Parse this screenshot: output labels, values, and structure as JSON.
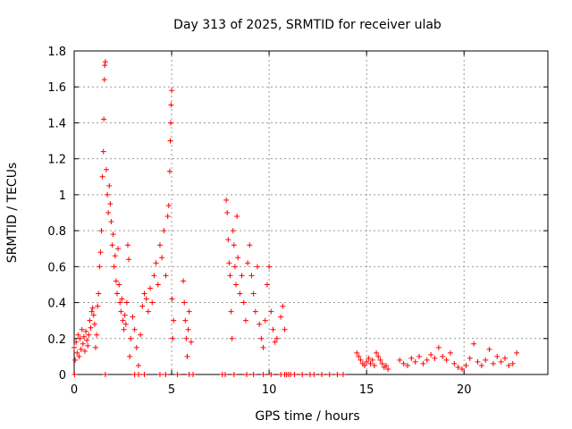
{
  "chart_data": {
    "type": "scatter",
    "title": "Day 313 of 2025, SRMTID for receiver ulab",
    "xlabel": "GPS time / hours",
    "ylabel": "SRMTID / TECUs",
    "xlim": [
      0,
      24.3
    ],
    "ylim": [
      0,
      1.8
    ],
    "x_ticks": [
      0,
      5,
      10,
      15,
      20
    ],
    "y_ticks": [
      0,
      0.2,
      0.4,
      0.6,
      0.8,
      1,
      1.2,
      1.4,
      1.6,
      1.8
    ],
    "x_tick_labels": [
      "0",
      "5",
      "10",
      "15",
      "20"
    ],
    "y_tick_labels": [
      "0",
      "0.2",
      "0.4",
      "0.6",
      "0.8",
      "1",
      "1.2",
      "1.4",
      "1.6",
      "1.8"
    ],
    "grid": true,
    "marker": "+",
    "color": "#ff0000",
    "series": [
      {
        "name": "SRMTID",
        "points": [
          [
            0.0,
            0.15
          ],
          [
            0.05,
            0.08
          ],
          [
            0.1,
            0.18
          ],
          [
            0.15,
            0.12
          ],
          [
            0.2,
            0.22
          ],
          [
            0.25,
            0.1
          ],
          [
            0.3,
            0.2
          ],
          [
            0.35,
            0.14
          ],
          [
            0.4,
            0.25
          ],
          [
            0.45,
            0.17
          ],
          [
            0.5,
            0.21
          ],
          [
            0.55,
            0.13
          ],
          [
            0.6,
            0.24
          ],
          [
            0.65,
            0.19
          ],
          [
            0.7,
            0.16
          ],
          [
            0.75,
            0.22
          ],
          [
            0.8,
            0.3
          ],
          [
            0.85,
            0.26
          ],
          [
            0.9,
            0.35
          ],
          [
            0.95,
            0.37
          ],
          [
            1.0,
            0.33
          ],
          [
            1.05,
            0.28
          ],
          [
            1.1,
            0.15
          ],
          [
            1.15,
            0.22
          ],
          [
            1.2,
            0.38
          ],
          [
            1.25,
            0.45
          ],
          [
            1.3,
            0.6
          ],
          [
            1.35,
            0.68
          ],
          [
            1.4,
            0.8
          ],
          [
            1.45,
            1.1
          ],
          [
            1.5,
            1.24
          ],
          [
            1.52,
            1.42
          ],
          [
            1.55,
            1.64
          ],
          [
            1.57,
            1.72
          ],
          [
            1.6,
            1.74
          ],
          [
            1.65,
            1.14
          ],
          [
            1.7,
            1.0
          ],
          [
            1.75,
            0.9
          ],
          [
            1.8,
            1.05
          ],
          [
            1.85,
            0.95
          ],
          [
            1.9,
            0.85
          ],
          [
            1.95,
            0.72
          ],
          [
            2.0,
            0.78
          ],
          [
            2.05,
            0.6
          ],
          [
            2.1,
            0.66
          ],
          [
            2.15,
            0.52
          ],
          [
            2.2,
            0.45
          ],
          [
            2.25,
            0.7
          ],
          [
            2.3,
            0.5
          ],
          [
            2.35,
            0.4
          ],
          [
            2.4,
            0.35
          ],
          [
            2.45,
            0.42
          ],
          [
            2.5,
            0.3
          ],
          [
            2.55,
            0.25
          ],
          [
            2.6,
            0.33
          ],
          [
            2.65,
            0.28
          ],
          [
            2.7,
            0.4
          ],
          [
            2.75,
            0.72
          ],
          [
            2.8,
            0.64
          ],
          [
            2.85,
            0.1
          ],
          [
            2.9,
            0.2
          ],
          [
            3.0,
            0.32
          ],
          [
            3.1,
            0.25
          ],
          [
            3.2,
            0.15
          ],
          [
            3.3,
            0.05
          ],
          [
            3.4,
            0.22
          ],
          [
            3.5,
            0.38
          ],
          [
            3.6,
            0.45
          ],
          [
            3.7,
            0.42
          ],
          [
            3.8,
            0.35
          ],
          [
            3.9,
            0.48
          ],
          [
            4.0,
            0.4
          ],
          [
            4.1,
            0.55
          ],
          [
            4.2,
            0.62
          ],
          [
            4.3,
            0.5
          ],
          [
            4.4,
            0.72
          ],
          [
            4.5,
            0.65
          ],
          [
            4.6,
            0.8
          ],
          [
            4.7,
            0.55
          ],
          [
            4.8,
            0.88
          ],
          [
            4.85,
            0.94
          ],
          [
            4.9,
            1.13
          ],
          [
            4.93,
            1.3
          ],
          [
            4.95,
            1.4
          ],
          [
            4.97,
            1.5
          ],
          [
            5.0,
            1.58
          ],
          [
            5.02,
            0.42
          ],
          [
            5.05,
            0.2
          ],
          [
            5.1,
            0.3
          ],
          [
            5.6,
            0.52
          ],
          [
            5.65,
            0.4
          ],
          [
            5.7,
            0.3
          ],
          [
            5.75,
            0.2
          ],
          [
            5.8,
            0.1
          ],
          [
            5.85,
            0.25
          ],
          [
            5.9,
            0.35
          ],
          [
            6.0,
            0.18
          ],
          [
            7.8,
            0.97
          ],
          [
            7.85,
            0.9
          ],
          [
            7.9,
            0.75
          ],
          [
            7.95,
            0.62
          ],
          [
            8.0,
            0.55
          ],
          [
            8.05,
            0.35
          ],
          [
            8.1,
            0.2
          ],
          [
            8.15,
            0.8
          ],
          [
            8.2,
            0.72
          ],
          [
            8.25,
            0.6
          ],
          [
            8.3,
            0.5
          ],
          [
            8.35,
            0.88
          ],
          [
            8.4,
            0.65
          ],
          [
            8.5,
            0.45
          ],
          [
            8.6,
            0.55
          ],
          [
            8.7,
            0.4
          ],
          [
            8.8,
            0.3
          ],
          [
            8.9,
            0.62
          ],
          [
            9.0,
            0.72
          ],
          [
            9.1,
            0.55
          ],
          [
            9.2,
            0.45
          ],
          [
            9.3,
            0.35
          ],
          [
            9.4,
            0.6
          ],
          [
            9.5,
            0.28
          ],
          [
            9.6,
            0.2
          ],
          [
            9.7,
            0.15
          ],
          [
            9.8,
            0.3
          ],
          [
            9.9,
            0.5
          ],
          [
            10.0,
            0.6
          ],
          [
            10.1,
            0.35
          ],
          [
            10.2,
            0.25
          ],
          [
            10.3,
            0.18
          ],
          [
            10.4,
            0.2
          ],
          [
            10.6,
            0.32
          ],
          [
            10.7,
            0.38
          ],
          [
            10.8,
            0.25
          ],
          [
            14.5,
            0.12
          ],
          [
            14.6,
            0.1
          ],
          [
            14.7,
            0.08
          ],
          [
            14.8,
            0.06
          ],
          [
            14.9,
            0.05
          ],
          [
            15.0,
            0.07
          ],
          [
            15.1,
            0.09
          ],
          [
            15.2,
            0.06
          ],
          [
            15.3,
            0.08
          ],
          [
            15.4,
            0.05
          ],
          [
            15.5,
            0.12
          ],
          [
            15.6,
            0.1
          ],
          [
            15.7,
            0.08
          ],
          [
            15.8,
            0.06
          ],
          [
            15.9,
            0.04
          ],
          [
            16.0,
            0.05
          ],
          [
            16.1,
            0.03
          ],
          [
            16.7,
            0.08
          ],
          [
            16.9,
            0.06
          ],
          [
            17.1,
            0.05
          ],
          [
            17.3,
            0.09
          ],
          [
            17.5,
            0.07
          ],
          [
            17.7,
            0.1
          ],
          [
            17.9,
            0.06
          ],
          [
            18.1,
            0.08
          ],
          [
            18.3,
            0.11
          ],
          [
            18.5,
            0.09
          ],
          [
            18.7,
            0.15
          ],
          [
            18.9,
            0.1
          ],
          [
            19.1,
            0.08
          ],
          [
            19.3,
            0.12
          ],
          [
            19.5,
            0.06
          ],
          [
            19.7,
            0.04
          ],
          [
            19.9,
            0.03
          ],
          [
            20.1,
            0.05
          ],
          [
            20.3,
            0.09
          ],
          [
            20.5,
            0.17
          ],
          [
            20.7,
            0.07
          ],
          [
            20.9,
            0.05
          ],
          [
            21.1,
            0.08
          ],
          [
            21.3,
            0.14
          ],
          [
            21.5,
            0.06
          ],
          [
            21.7,
            0.1
          ],
          [
            21.9,
            0.07
          ],
          [
            22.1,
            0.09
          ],
          [
            22.3,
            0.05
          ],
          [
            22.5,
            0.06
          ],
          [
            22.7,
            0.12
          ],
          [
            0.02,
            0.0
          ],
          [
            1.6,
            0.0
          ],
          [
            3.1,
            0.0
          ],
          [
            3.3,
            0.0
          ],
          [
            3.6,
            0.0
          ],
          [
            4.4,
            0.0
          ],
          [
            4.7,
            0.0
          ],
          [
            5.3,
            0.0
          ],
          [
            5.9,
            0.0
          ],
          [
            6.1,
            0.0
          ],
          [
            7.6,
            0.0
          ],
          [
            7.75,
            0.0
          ],
          [
            8.2,
            0.0
          ],
          [
            8.85,
            0.0
          ],
          [
            9.2,
            0.0
          ],
          [
            9.7,
            0.0
          ],
          [
            10.1,
            0.0
          ],
          [
            10.6,
            0.0
          ],
          [
            10.8,
            0.0
          ],
          [
            10.9,
            0.0
          ],
          [
            11.0,
            0.0
          ],
          [
            11.1,
            0.0
          ],
          [
            11.3,
            0.0
          ],
          [
            11.7,
            0.0
          ],
          [
            12.1,
            0.0
          ],
          [
            12.3,
            0.0
          ],
          [
            12.7,
            0.0
          ],
          [
            13.1,
            0.0
          ],
          [
            13.5,
            0.0
          ],
          [
            13.8,
            0.0
          ]
        ]
      }
    ]
  }
}
